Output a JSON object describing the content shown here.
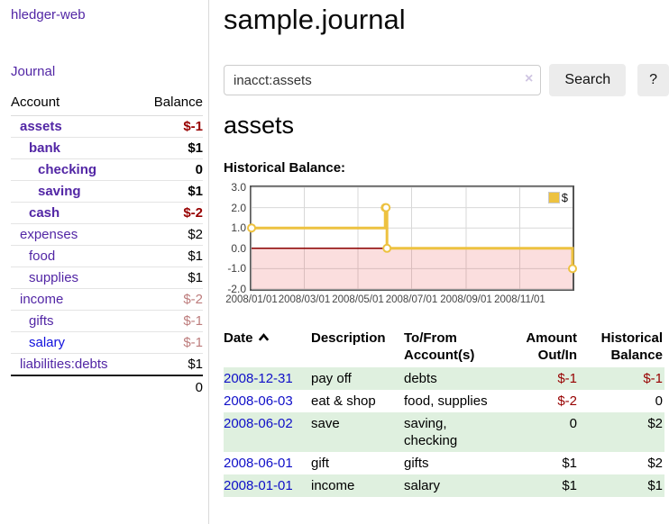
{
  "app": {
    "title": "hledger-web",
    "nav_journal": "Journal"
  },
  "sidebar": {
    "col_account": "Account",
    "col_balance": "Balance",
    "accounts": [
      {
        "name": "assets",
        "indent": 1,
        "bold": true,
        "balance": "$-1",
        "balance_style": "neg-strong"
      },
      {
        "name": "bank",
        "indent": 2,
        "bold": true,
        "balance": "$1",
        "balance_style": "pos"
      },
      {
        "name": "checking",
        "indent": 3,
        "bold": true,
        "balance": "0",
        "balance_style": "pos"
      },
      {
        "name": "saving",
        "indent": 3,
        "bold": true,
        "balance": "$1",
        "balance_style": "pos"
      },
      {
        "name": "cash",
        "indent": 2,
        "bold": true,
        "balance": "$-2",
        "balance_style": "neg-strong"
      },
      {
        "name": "expenses",
        "indent": 1,
        "bold": false,
        "balance": "$2",
        "balance_style": "pos"
      },
      {
        "name": "food",
        "indent": 2,
        "bold": false,
        "balance": "$1",
        "balance_style": "pos"
      },
      {
        "name": "supplies",
        "indent": 2,
        "bold": false,
        "balance": "$1",
        "balance_style": "pos"
      },
      {
        "name": "income",
        "indent": 1,
        "bold": false,
        "balance": "$-2",
        "balance_style": "neg-muted"
      },
      {
        "name": "gifts",
        "indent": 2,
        "bold": false,
        "balance": "$-1",
        "balance_style": "neg-muted"
      },
      {
        "name": "salary",
        "indent": 2,
        "bold": false,
        "balance": "$-1",
        "balance_style": "neg-muted",
        "link_style": "blue"
      },
      {
        "name": "liabilities:debts",
        "indent": 1,
        "bold": false,
        "balance": "$1",
        "balance_style": "pos"
      }
    ],
    "total": "0"
  },
  "header": {
    "title": "sample.journal"
  },
  "search": {
    "value": "inacct:assets",
    "clear_icon": "×",
    "button": "Search",
    "help_button": "?"
  },
  "account_page": {
    "heading": "assets",
    "chart_label": "Historical Balance:"
  },
  "chart_data": {
    "type": "line",
    "step": true,
    "title": "Historical Balance",
    "ylim": [
      -2,
      3
    ],
    "yticks": [
      "3.0",
      "2.0",
      "1.0",
      "0.0",
      "-1.0",
      "-2.0"
    ],
    "yticks_values": [
      3,
      2,
      1,
      0,
      -1,
      -2
    ],
    "xticks": [
      "2008/01/01",
      "2008/03/01",
      "2008/05/01",
      "2008/07/01",
      "2008/09/01",
      "2008/11/01"
    ],
    "xtick_days": [
      0,
      60,
      121,
      182,
      244,
      305
    ],
    "xrange_days": [
      0,
      365
    ],
    "grid_color": "#d8d8d8",
    "negative_region_fill": "rgba(230,60,60,0.17)",
    "zero_line_color": "#8b0000",
    "legend_position": "top-right",
    "series": [
      {
        "name": "$",
        "color": "#edc240",
        "points": [
          {
            "date": "2008-01-01",
            "day": 0,
            "value": 1
          },
          {
            "date": "2008-06-01",
            "day": 152,
            "value": 2
          },
          {
            "date": "2008-06-02",
            "day": 153,
            "value": 2
          },
          {
            "date": "2008-06-03",
            "day": 154,
            "value": 0
          },
          {
            "date": "2008-12-31",
            "day": 365,
            "value": -1
          }
        ]
      }
    ]
  },
  "register": {
    "columns": [
      {
        "l1": "Date",
        "l2": ""
      },
      {
        "l1": "Description",
        "l2": ""
      },
      {
        "l1": "To/From",
        "l2": "Account(s)"
      },
      {
        "l1": "Amount",
        "l2": "Out/In"
      },
      {
        "l1": "Historical",
        "l2": "Balance"
      }
    ],
    "rows": [
      {
        "date": "2008-12-31",
        "description": "pay off",
        "accounts": "debts",
        "wrap": false,
        "amount": "$-1",
        "amount_style": "neg",
        "balance": "$-1",
        "balance_style": "neg",
        "shaded": true
      },
      {
        "date": "2008-06-03",
        "description": "eat & shop",
        "accounts": "food, supplies",
        "wrap": false,
        "amount": "$-2",
        "amount_style": "neg",
        "balance": "0",
        "balance_style": "pos",
        "shaded": false
      },
      {
        "date": "2008-06-02",
        "description": "save",
        "accounts": "saving, checking",
        "wrap": true,
        "amount": "0",
        "amount_style": "pos",
        "balance": "$2",
        "balance_style": "pos",
        "shaded": true
      },
      {
        "date": "2008-06-01",
        "description": "gift",
        "accounts": "gifts",
        "wrap": false,
        "amount": "$1",
        "amount_style": "pos",
        "balance": "$2",
        "balance_style": "pos",
        "shaded": false
      },
      {
        "date": "2008-01-01",
        "description": "income",
        "accounts": "salary",
        "wrap": false,
        "amount": "$1",
        "amount_style": "pos",
        "balance": "$1",
        "balance_style": "pos",
        "shaded": true
      }
    ]
  },
  "colors": {
    "link_purple": "#5226a5",
    "link_blue": "#0f0fc8",
    "negative_strong": "#970000",
    "negative_muted": "#bd7c7c",
    "row_shade_green": "#dff0df",
    "series_gold": "#edc240",
    "zero_line": "#8b0000"
  }
}
